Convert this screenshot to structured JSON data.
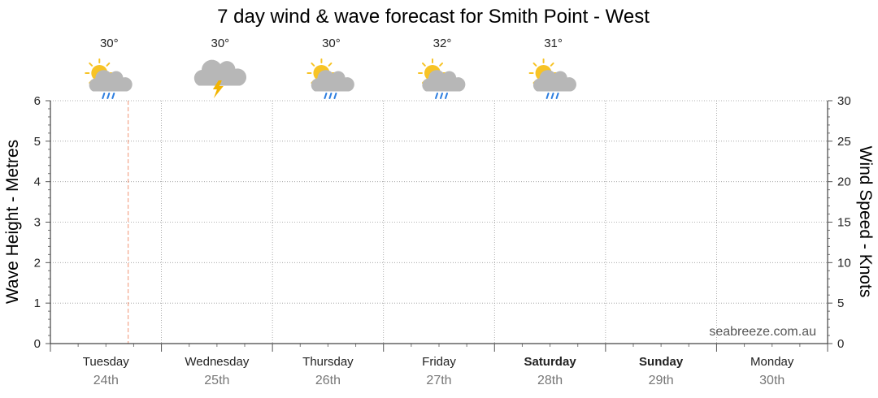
{
  "chart_data": {
    "type": "line",
    "title": "7 day wind & wave forecast for Smith Point - West",
    "ylabel_left": "Wave Height - Metres",
    "ylabel_right": "Wind Speed - Knots",
    "y_left": {
      "range": [
        0,
        6
      ],
      "ticks": [
        "0",
        "1",
        "2",
        "3",
        "4",
        "5",
        "6"
      ]
    },
    "y_right": {
      "range": [
        0,
        30
      ],
      "ticks": [
        "0",
        "5",
        "10",
        "15",
        "20",
        "25",
        "30"
      ]
    },
    "grid": true,
    "days": [
      {
        "name": "Tuesday",
        "date": "24th",
        "bold": false
      },
      {
        "name": "Wednesday",
        "date": "25th",
        "bold": false
      },
      {
        "name": "Thursday",
        "date": "26th",
        "bold": false
      },
      {
        "name": "Friday",
        "date": "27th",
        "bold": false
      },
      {
        "name": "Saturday",
        "date": "28th",
        "bold": true
      },
      {
        "name": "Sunday",
        "date": "29th",
        "bold": true
      },
      {
        "name": "Monday",
        "date": "30th",
        "bold": false
      }
    ],
    "weather": [
      {
        "temp": "30°",
        "icon": "sun-cloud-rain-icon"
      },
      {
        "temp": "30°",
        "icon": "cloud-lightning-icon"
      },
      {
        "temp": "30°",
        "icon": "sun-cloud-rain-icon"
      },
      {
        "temp": "32°",
        "icon": "sun-cloud-rain-icon"
      },
      {
        "temp": "31°",
        "icon": "sun-cloud-rain-icon"
      }
    ],
    "series": [],
    "now_marker_fraction_of_day": 0.7,
    "credit": "seabreeze.com.au",
    "colors": {
      "grid": "#999999",
      "now_marker": "#f4a58a",
      "sun": "#f7c325",
      "cloud": "#b7b7b7",
      "rain": "#2f7fe0",
      "lightning": "#f2b400"
    }
  }
}
